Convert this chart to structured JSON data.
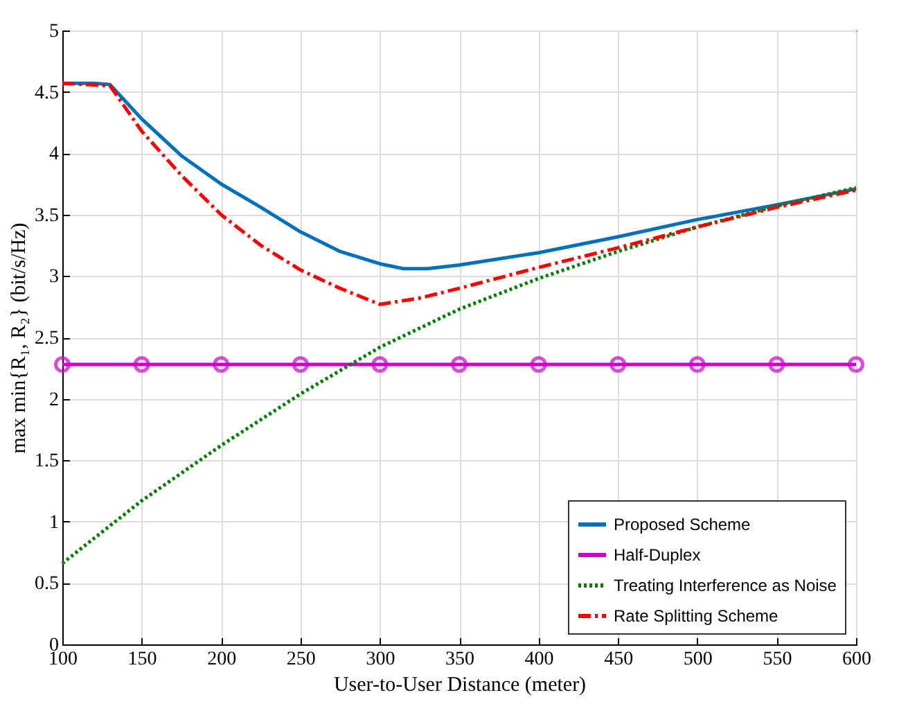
{
  "chart_data": {
    "type": "line",
    "xlabel": "User-to-User Distance (meter)",
    "ylabel": "max min{R₁, R₂} (bit/s/Hz)",
    "xlim": [
      100,
      600
    ],
    "xticks": [
      100,
      150,
      200,
      250,
      300,
      350,
      400,
      450,
      500,
      550,
      600
    ],
    "ylim": [
      0,
      5
    ],
    "yticks": [
      0,
      0.5,
      1,
      1.5,
      2,
      2.5,
      3,
      3.5,
      4,
      4.5,
      5
    ],
    "grid": true,
    "legend": "bottom right",
    "series": [
      {
        "name": "Proposed Scheme",
        "color": "#0072bd",
        "line_style": "solid",
        "marker": "none",
        "x": [
          100,
          120,
          130,
          150,
          175,
          200,
          225,
          250,
          275,
          300,
          315,
          330,
          350,
          400,
          450,
          500,
          550,
          600
        ],
        "values": [
          4.57,
          4.57,
          4.56,
          4.28,
          3.98,
          3.75,
          3.56,
          3.36,
          3.2,
          3.1,
          3.06,
          3.06,
          3.09,
          3.19,
          3.32,
          3.46,
          3.58,
          3.71
        ]
      },
      {
        "name": "Half-Duplex",
        "color": "#cc00cc",
        "line_style": "solid",
        "marker": "circle",
        "x": [
          100,
          150,
          200,
          250,
          300,
          350,
          400,
          450,
          500,
          550,
          600
        ],
        "values": [
          2.28,
          2.28,
          2.28,
          2.28,
          2.28,
          2.28,
          2.28,
          2.28,
          2.28,
          2.28,
          2.28
        ]
      },
      {
        "name": "Treating Interference as Noise",
        "color": "#008000",
        "line_style": "dotted",
        "marker": "none",
        "x": [
          100,
          150,
          200,
          250,
          300,
          350,
          400,
          450,
          500,
          550,
          600
        ],
        "values": [
          0.66,
          1.17,
          1.62,
          2.04,
          2.42,
          2.73,
          2.98,
          3.2,
          3.4,
          3.57,
          3.72
        ]
      },
      {
        "name": "Rate Splitting Scheme",
        "color": "#ff0000",
        "line_style": "dashed",
        "marker": "none",
        "x": [
          100,
          130,
          150,
          175,
          200,
          225,
          250,
          275,
          300,
          325,
          350,
          400,
          450,
          500,
          550,
          600
        ],
        "values": [
          4.57,
          4.55,
          4.18,
          3.82,
          3.5,
          3.25,
          3.05,
          2.9,
          2.77,
          2.82,
          2.9,
          3.07,
          3.23,
          3.4,
          3.56,
          3.7
        ]
      }
    ]
  }
}
